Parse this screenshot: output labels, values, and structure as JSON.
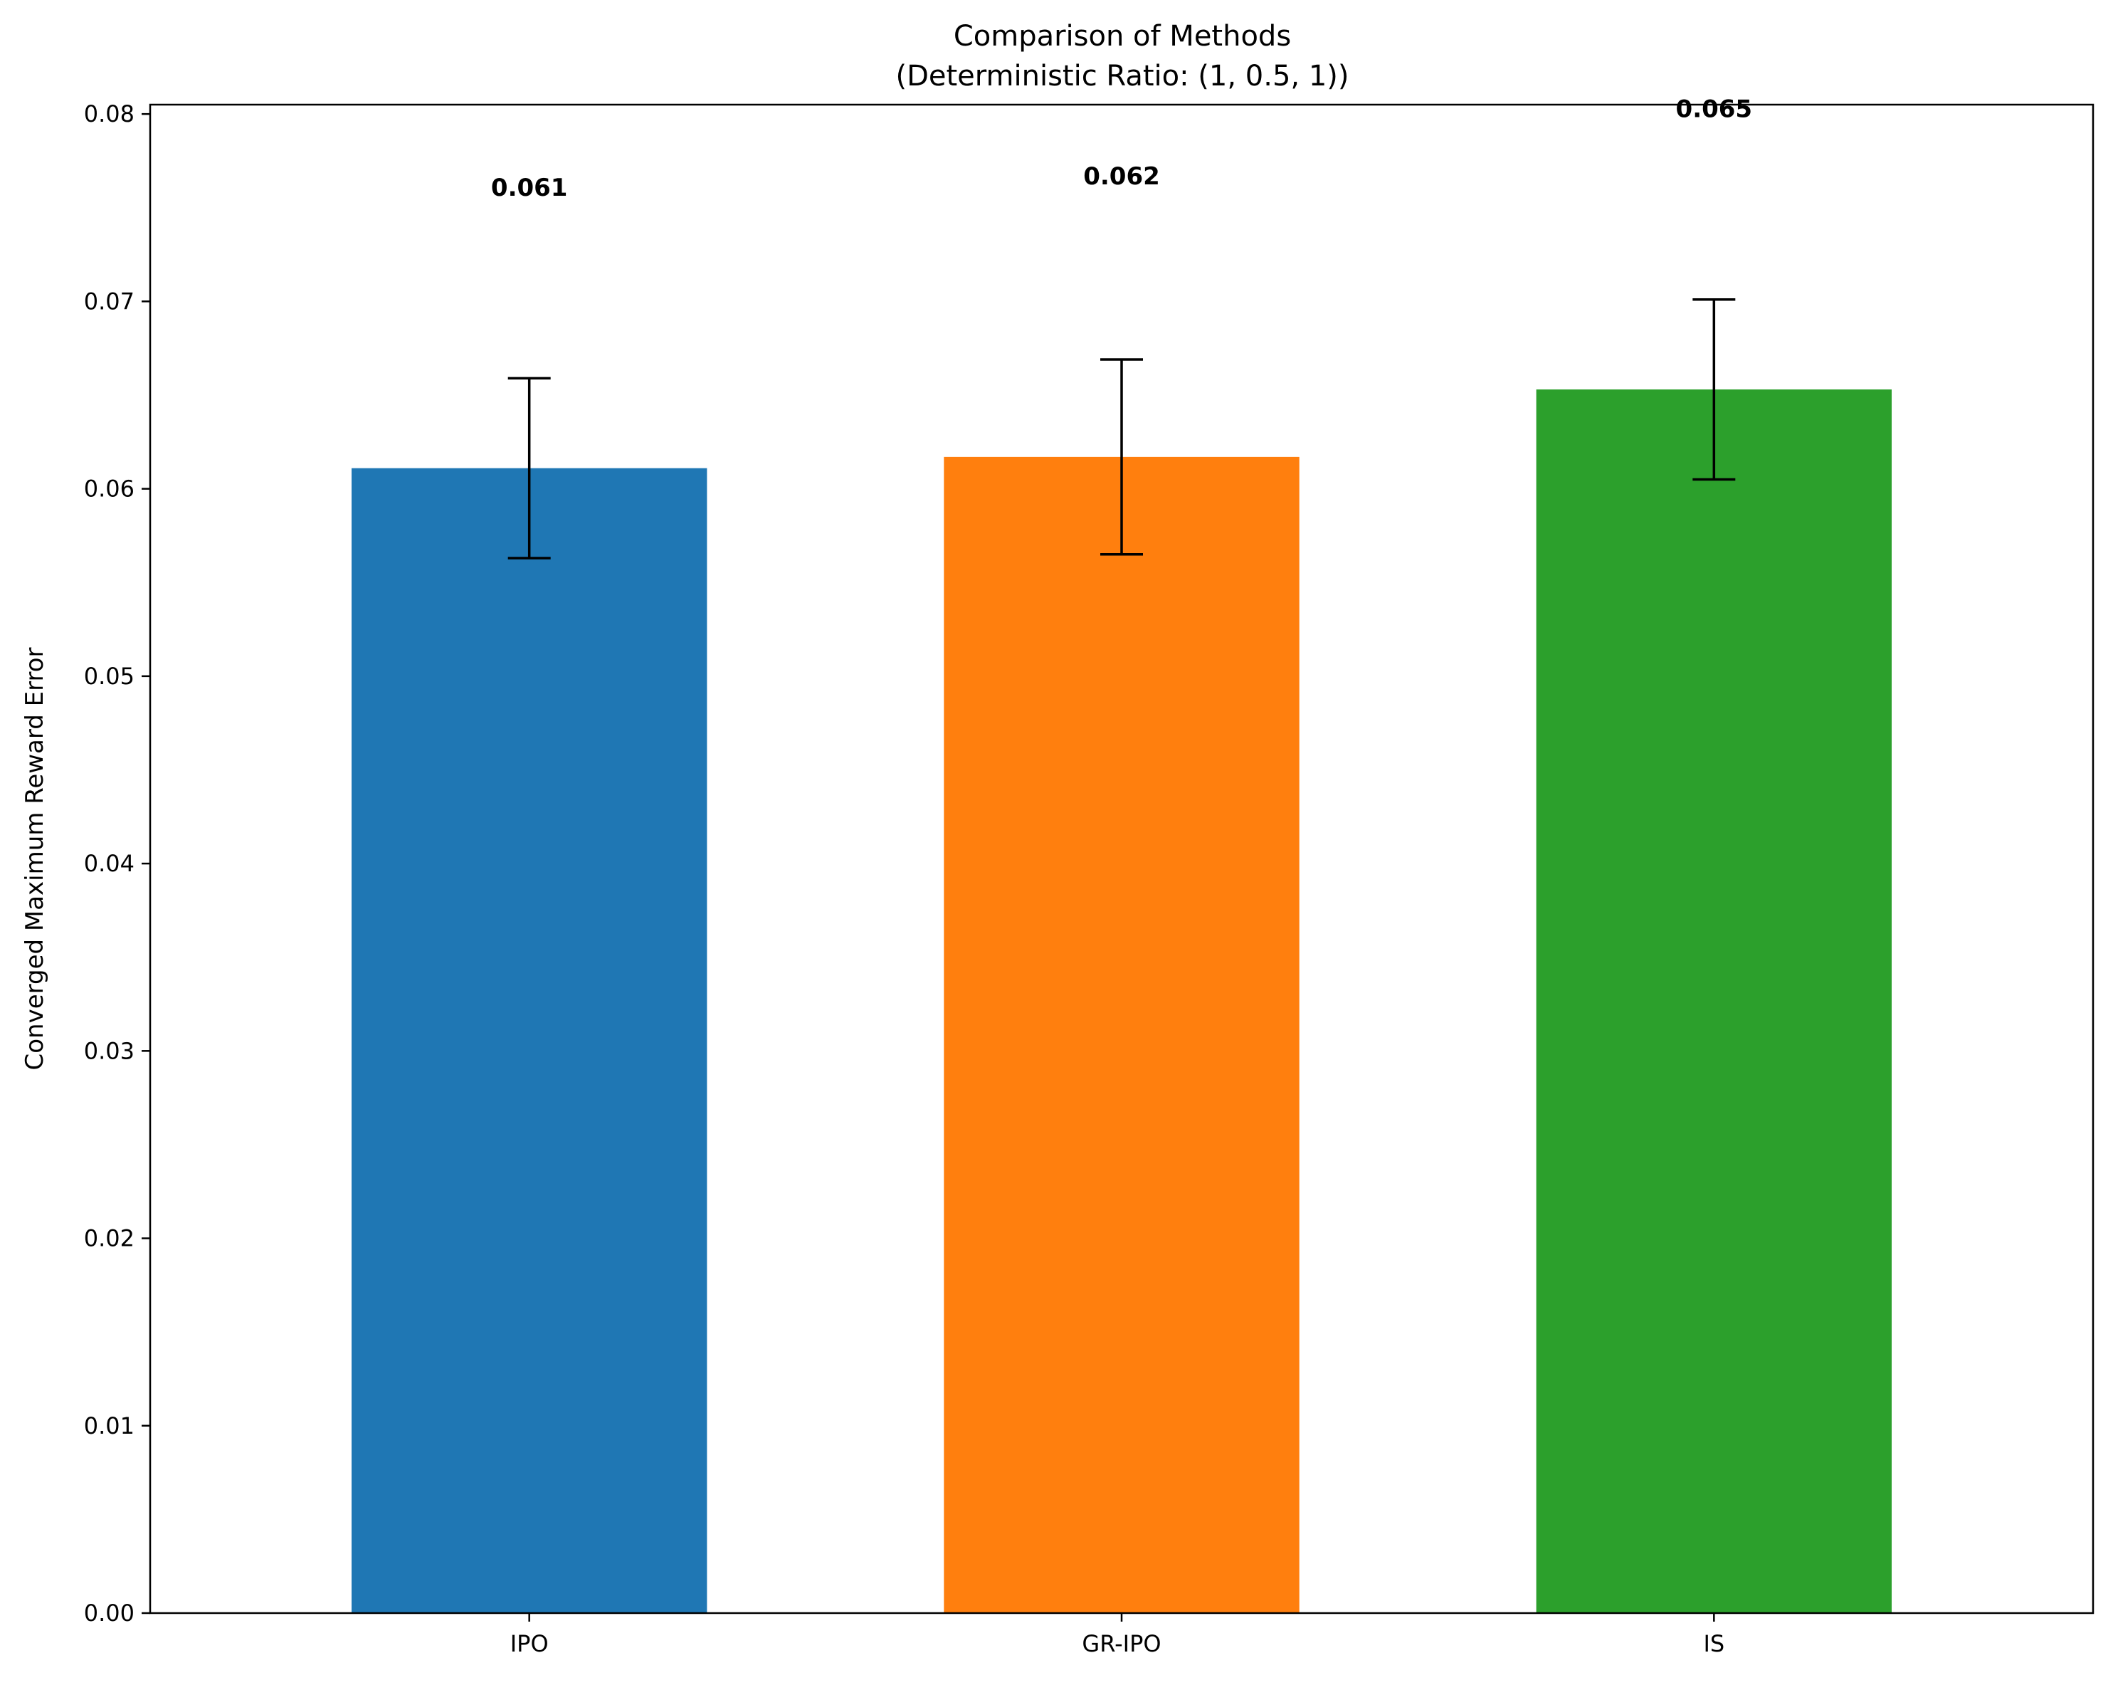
{
  "chart_data": {
    "type": "bar",
    "title": "Comparison of Methods",
    "subtitle": "(Deterministic Ratio: (1, 0.5, 1))",
    "xlabel": "",
    "ylabel": "Converged Maximum Reward Error",
    "categories": [
      "IPO",
      "GR-IPO",
      "IS"
    ],
    "values": [
      0.0611,
      0.0617,
      0.0653
    ],
    "errors": [
      0.0048,
      0.0052,
      0.0048
    ],
    "value_labels": [
      "0.061",
      "0.062",
      "0.065"
    ],
    "colors": [
      "#1f77b4",
      "#ff7f0e",
      "#2ca02c"
    ],
    "ylim": [
      0,
      0.0805
    ],
    "yticks": [
      0.0,
      0.01,
      0.02,
      0.03,
      0.04,
      0.05,
      0.06,
      0.07,
      0.08
    ],
    "ytick_labels": [
      "0.00",
      "0.01",
      "0.02",
      "0.03",
      "0.04",
      "0.05",
      "0.06",
      "0.07",
      "0.08"
    ],
    "grid": false,
    "legend": "none"
  }
}
